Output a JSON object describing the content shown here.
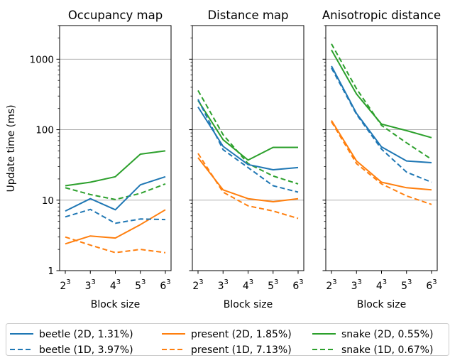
{
  "chart_data": {
    "type": "line",
    "ylabel": "Update time (ms)",
    "yscale": "log",
    "ylim": [
      1,
      3000
    ],
    "yticks": [
      1,
      10,
      100,
      1000
    ],
    "ytick_labels": [
      "1",
      "10",
      "100",
      "1000"
    ],
    "grid": "horizontal at y ticks",
    "legend_placement": "bottom",
    "colors": {
      "beetle": "#1f77b4",
      "present": "#ff7f0e",
      "snake": "#2ca02c",
      "grid": "#b0b0b0"
    },
    "xticks": [
      {
        "base": "2",
        "exp": "3"
      },
      {
        "base": "3",
        "exp": "3"
      },
      {
        "base": "4",
        "exp": "3"
      },
      {
        "base": "5",
        "exp": "3"
      },
      {
        "base": "6",
        "exp": "3"
      }
    ],
    "x": [
      8,
      27,
      64,
      125,
      216
    ],
    "legend": [
      {
        "key": "beetle_2d",
        "label": "beetle (2D, 1.31%)",
        "color": "#1f77b4",
        "dashed": false
      },
      {
        "key": "present_2d",
        "label": "present (2D, 1.85%)",
        "color": "#ff7f0e",
        "dashed": false
      },
      {
        "key": "snake_2d",
        "label": "snake (2D, 0.55%)",
        "color": "#2ca02c",
        "dashed": false
      },
      {
        "key": "beetle_1d",
        "label": "beetle (1D, 3.97%)",
        "color": "#1f77b4",
        "dashed": true
      },
      {
        "key": "present_1d",
        "label": "present (1D, 7.13%)",
        "color": "#ff7f0e",
        "dashed": true
      },
      {
        "key": "snake_1d",
        "label": "snake (1D, 0.67%)",
        "color": "#2ca02c",
        "dashed": true
      }
    ],
    "panels": [
      {
        "title": "Occupancy map",
        "xlabel": "Block size",
        "series": {
          "beetle_2d": [
            7.0,
            10.5,
            7.3,
            16.5,
            21.5
          ],
          "beetle_1d": [
            5.8,
            7.4,
            4.7,
            5.4,
            5.3
          ],
          "present_2d": [
            2.4,
            3.1,
            2.9,
            4.5,
            7.3
          ],
          "present_1d": [
            3.0,
            2.3,
            1.8,
            2.0,
            1.8
          ],
          "snake_2d": [
            16.0,
            18.0,
            21.5,
            45.0,
            50.0
          ],
          "snake_1d": [
            15.0,
            12.0,
            10.2,
            12.5,
            17.0
          ]
        }
      },
      {
        "title": "Distance map",
        "xlabel": "Block size",
        "series": {
          "beetle_2d": [
            210,
            58,
            32,
            27,
            29
          ],
          "beetle_1d": [
            270,
            52,
            29,
            16,
            13
          ],
          "present_2d": [
            40,
            14,
            10.5,
            9.5,
            10.5
          ],
          "present_1d": [
            46,
            13,
            8.3,
            7.0,
            5.5
          ],
          "snake_2d": [
            260,
            72,
            37,
            56,
            56
          ],
          "snake_1d": [
            360,
            85,
            33,
            22,
            17
          ]
        }
      },
      {
        "title": "Anisotropic distance",
        "xlabel": "Block size",
        "series": {
          "beetle_2d": [
            800,
            170,
            57,
            36,
            34
          ],
          "beetle_1d": [
            750,
            165,
            53,
            25,
            18
          ],
          "present_2d": [
            135,
            36,
            18,
            15,
            14
          ],
          "present_1d": [
            130,
            33,
            17,
            11.5,
            8.7
          ],
          "snake_2d": [
            1350,
            320,
            120,
            97,
            77
          ],
          "snake_1d": [
            1650,
            380,
            115,
            65,
            38
          ]
        }
      }
    ]
  }
}
